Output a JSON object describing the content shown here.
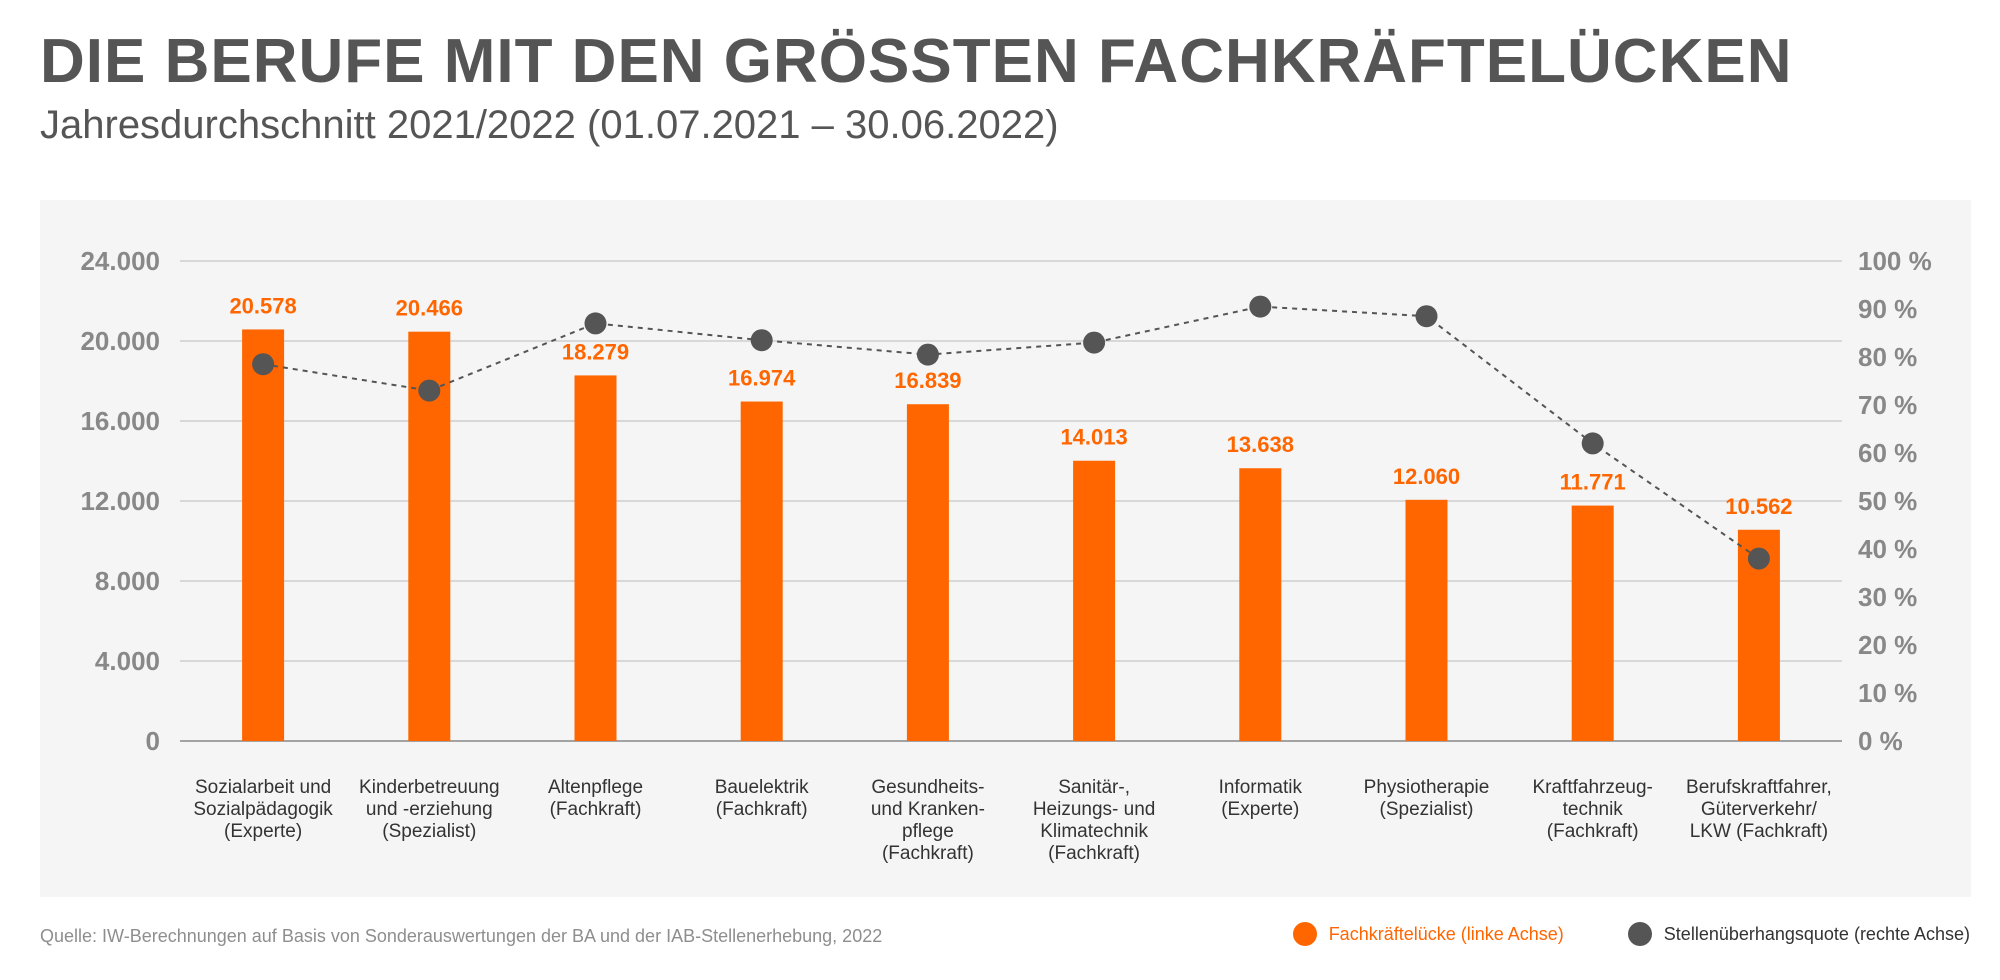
{
  "header": {
    "title": "DIE BERUFE MIT DEN GRÖSSTEN FACHKRÄFTELÜCKEN",
    "subtitle": "Jahresdurchschnitt 2021/2022 (01.07.2021 – 30.06.2022)"
  },
  "footer": {
    "source": "Quelle: IW-Berechnungen auf Basis von Sonderauswertungen der BA und der IAB-Stellenerhebung, 2022"
  },
  "colors": {
    "bar": "#ff6600",
    "line": "#555555",
    "axis_text": "#888888",
    "label_text": "#333333",
    "grid": "#bbbbbb",
    "panel_bg": "#f5f5f5"
  },
  "chart_data": {
    "type": "bar",
    "title": "",
    "categories": [
      [
        "Sozialarbeit und",
        "Sozialpädagogik",
        "(Experte)"
      ],
      [
        "Kinderbetreuung",
        "und -erziehung",
        "(Spezialist)"
      ],
      [
        "Altenpflege",
        "(Fachkraft)"
      ],
      [
        "Bauelektrik",
        "(Fachkraft)"
      ],
      [
        "Gesundheits-",
        "und Kranken-",
        "pflege",
        "(Fachkraft)"
      ],
      [
        "Sanitär-,",
        "Heizungs- und",
        "Klimatechnik",
        "(Fachkraft)"
      ],
      [
        "Informatik",
        "(Experte)"
      ],
      [
        "Physiotherapie",
        "(Spezialist)"
      ],
      [
        "Kraftfahrzeug-",
        "technik",
        "(Fachkraft)"
      ],
      [
        "Berufskraftfahrer,",
        "Güterverkehr/",
        "LKW (Fachkraft)"
      ]
    ],
    "series": [
      {
        "name": "Fachkräftelücke (linke Achse)",
        "type": "bar",
        "axis": "left",
        "values": [
          20578,
          20466,
          18279,
          16974,
          16839,
          14013,
          13638,
          12060,
          11771,
          10562
        ],
        "value_labels": [
          "20.578",
          "20.466",
          "18.279",
          "16.974",
          "16.839",
          "14.013",
          "13.638",
          "12.060",
          "11.771",
          "10.562"
        ]
      },
      {
        "name": "Stellenüberhangsquote (rechte Achse)",
        "type": "line",
        "axis": "right",
        "values": [
          78.5,
          73,
          87,
          83.5,
          80.5,
          83,
          90.5,
          88.5,
          62,
          38
        ]
      }
    ],
    "left_axis": {
      "ylim": [
        0,
        24000
      ],
      "ticks": [
        0,
        4000,
        8000,
        12000,
        16000,
        20000,
        24000
      ],
      "tick_labels": [
        "0",
        "4.000",
        "8.000",
        "12.000",
        "16.000",
        "20.000",
        "24.000"
      ]
    },
    "right_axis": {
      "ylim": [
        0,
        100
      ],
      "ticks": [
        0,
        10,
        20,
        30,
        40,
        50,
        60,
        70,
        80,
        90,
        100
      ],
      "tick_labels": [
        "0 %",
        "10 %",
        "20 %",
        "30 %",
        "40 %",
        "50 %",
        "60 %",
        "70 %",
        "80 %",
        "90 %",
        "100 %"
      ]
    },
    "grid": true,
    "legend_position": "bottom-right"
  }
}
